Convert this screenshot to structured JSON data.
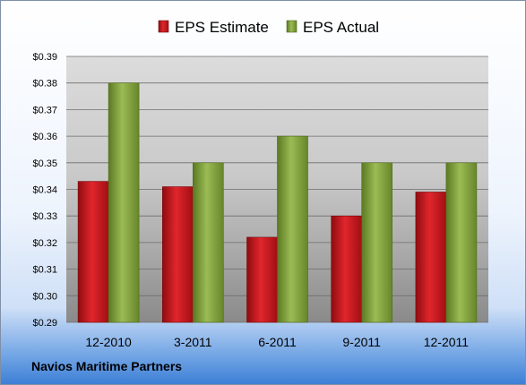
{
  "chart_data": {
    "type": "bar",
    "categories": [
      "12-2010",
      "3-2011",
      "6-2011",
      "9-2011",
      "12-2011"
    ],
    "series": [
      {
        "name": "EPS Estimate",
        "values": [
          0.343,
          0.341,
          0.322,
          0.33,
          0.339
        ],
        "color": "#c4161c"
      },
      {
        "name": "EPS Actual",
        "values": [
          0.38,
          0.35,
          0.36,
          0.35,
          0.35
        ],
        "color": "#7f9f3a"
      }
    ],
    "ylim": [
      0.29,
      0.39
    ],
    "yticks": [
      "$0.29",
      "$0.30",
      "$0.31",
      "$0.32",
      "$0.33",
      "$0.34",
      "$0.35",
      "$0.36",
      "$0.37",
      "$0.38",
      "$0.39"
    ],
    "ytick_values": [
      0.29,
      0.3,
      0.31,
      0.32,
      0.33,
      0.34,
      0.35,
      0.36,
      0.37,
      0.38,
      0.39
    ],
    "grid": true,
    "legend_position": "top-center"
  },
  "footer": {
    "company": "Navios Maritime Partners"
  }
}
